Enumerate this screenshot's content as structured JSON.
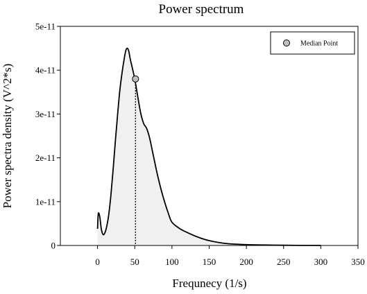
{
  "chart_data": {
    "type": "area",
    "title": "Power spectrum",
    "xlabel": "Frequnecy (1/s)",
    "ylabel": "Power spectra density (V^2*s)",
    "xlim": [
      -50,
      350
    ],
    "ylim": [
      0,
      5e-11
    ],
    "x_ticks": [
      0,
      50,
      100,
      150,
      200,
      250,
      300,
      350
    ],
    "x_tick_labels": [
      "0",
      "50",
      "100",
      "150",
      "200",
      "250",
      "300",
      "350"
    ],
    "y_ticks": [
      0,
      1e-11,
      2e-11,
      3e-11,
      4e-11,
      5e-11
    ],
    "y_tick_labels": [
      "0",
      "1e-11",
      "2e-11",
      "3e-11",
      "4e-11",
      "5e-11"
    ],
    "grid": false,
    "legend_position": "top-right",
    "series": [
      {
        "x": [
          0,
          1,
          3,
          5,
          7,
          9,
          12,
          15,
          18,
          21,
          24,
          27,
          30,
          33,
          36,
          38,
          40,
          42,
          44,
          47,
          50,
          54,
          58,
          62,
          66,
          70,
          75,
          80,
          85,
          90,
          95,
          100,
          110,
          120,
          135,
          150,
          170,
          200,
          250,
          300
        ],
        "y": [
          3.8e-12,
          7.3e-12,
          6.5e-12,
          3.8e-12,
          2.6e-12,
          2.6e-12,
          4.1e-12,
          7e-12,
          1.16e-11,
          1.75e-11,
          2.4e-11,
          3e-11,
          3.55e-11,
          3.95e-11,
          4.28e-11,
          4.45e-11,
          4.5e-11,
          4.43e-11,
          4.25e-11,
          4.03e-11,
          3.8e-11,
          3.4e-11,
          3.02e-11,
          2.78e-11,
          2.67e-11,
          2.45e-11,
          2.05e-11,
          1.65e-11,
          1.3e-11,
          1e-11,
          7.4e-12,
          5.3e-12,
          3.9e-12,
          3e-12,
          1.9e-12,
          1.1e-12,
          5e-13,
          2e-13,
          5e-14,
          0
        ]
      }
    ],
    "median_point": {
      "label": "Median Point",
      "x": 51,
      "y": 3.8e-11
    },
    "colors": {
      "line": "#000000",
      "fill": "#f0f0f0",
      "marker_fill": "#c0c0c0"
    }
  }
}
